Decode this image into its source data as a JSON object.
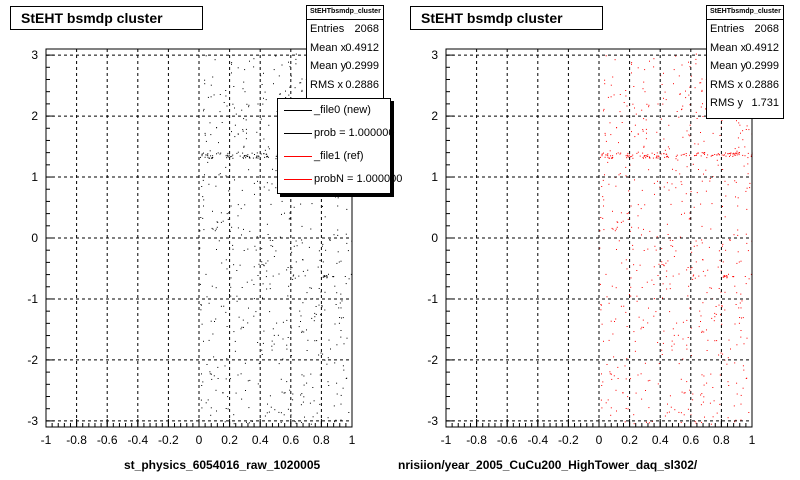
{
  "chart_data": [
    {
      "type": "scatter",
      "title": "StEHT bsmdp cluster",
      "xlim": [
        -1,
        1
      ],
      "ylim": [
        -3.1,
        3.1
      ],
      "xticks": [
        "-1",
        "-0.8",
        "-0.6",
        "-0.4",
        "-0.2",
        "0",
        "0.2",
        "0.4",
        "0.6",
        "0.8",
        "1"
      ],
      "yticks": [
        "-3",
        "-2",
        "-1",
        "0",
        "1",
        "2",
        "3"
      ],
      "grid": true,
      "xlabel": "st_physics_6054016_raw_1020005",
      "marker_color": "#000000",
      "stats": {
        "name": "StEHTbsmdp_cluster",
        "entries_label": "Entries",
        "entries": "2068",
        "meanx_label": "Mean x",
        "meanx": "0.4912",
        "meany_label": "Mean y",
        "meany": "0.2999",
        "rmsx_label": "RMS x",
        "rmsx": "0.2886"
      },
      "legend": [
        {
          "label": "_file0 (new)",
          "color": "#000000"
        },
        {
          "label": "prob = 1.000000",
          "color": "#000000"
        },
        {
          "label": "_file1 (ref)",
          "color": "#ff0000"
        },
        {
          "label": "probN = 1.000000",
          "color": "#ff0000"
        }
      ]
    },
    {
      "type": "scatter",
      "title": "StEHT bsmdp cluster",
      "xlim": [
        -1,
        1
      ],
      "ylim": [
        -3.1,
        3.1
      ],
      "xticks": [
        "-1",
        "-0.8",
        "-0.6",
        "-0.4",
        "-0.2",
        "0",
        "0.2",
        "0.4",
        "0.6",
        "0.8",
        "1"
      ],
      "yticks": [
        "-3",
        "-2",
        "-1",
        "0",
        "1",
        "2",
        "3"
      ],
      "grid": true,
      "xlabel": "nrisiion/year_2005_CuCu200_HighTower_daq_sl302/",
      "marker_color": "#ff0000",
      "stats": {
        "name": "StEHTbsmdp_cluster",
        "entries_label": "Entries",
        "entries": "2068",
        "meanx_label": "Mean x",
        "meanx": "0.4912",
        "meany_label": "Mean y",
        "meany": "0.2999",
        "rmsx_label": "RMS x",
        "rmsx": "0.2886",
        "rmsy_label": "RMS y",
        "rmsy": "1.731"
      }
    }
  ]
}
